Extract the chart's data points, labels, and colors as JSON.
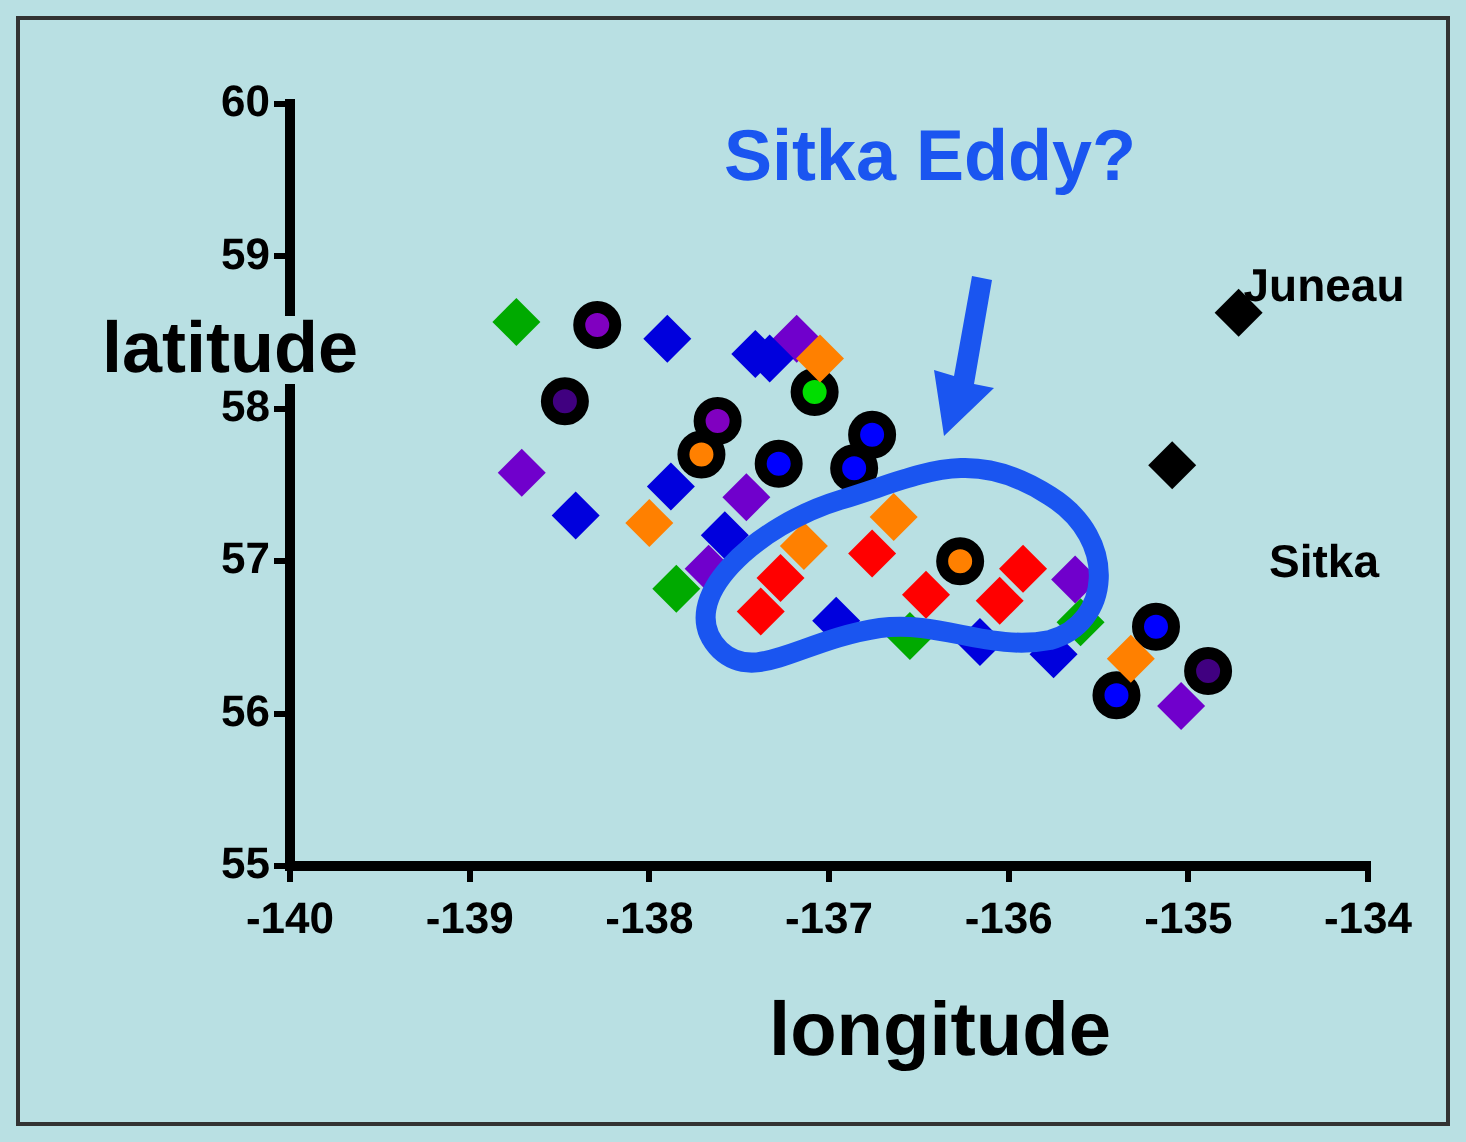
{
  "chart_data": {
    "type": "scatter",
    "xlabel": "longitude",
    "ylabel": "latitude",
    "xlim": [
      -140,
      -134
    ],
    "ylim": [
      55,
      60
    ],
    "xticks": [
      -140,
      -139,
      -138,
      -137,
      -136,
      -135,
      -134
    ],
    "yticks": [
      55,
      56,
      57,
      58,
      59,
      60
    ],
    "grid": false,
    "legend": false,
    "annotations": [
      "Sitka Eddy?",
      "Juneau",
      "Sitka"
    ],
    "series": [
      {
        "marker": "circle",
        "color": "#8000c0",
        "x": [
          -138.29,
          -137.62
        ],
        "values": [
          58.55,
          57.92
        ]
      },
      {
        "marker": "circle",
        "color": "#400080",
        "x": [
          -138.47,
          -134.89
        ],
        "values": [
          58.05,
          56.28
        ]
      },
      {
        "marker": "circle",
        "color": "#ff8000",
        "x": [
          -137.71,
          -136.27
        ],
        "values": [
          57.7,
          57.0
        ]
      },
      {
        "marker": "circle",
        "color": "#0000ff",
        "x": [
          -137.28,
          -136.76,
          -136.86,
          -135.18,
          -135.4
        ],
        "values": [
          57.64,
          57.83,
          57.61,
          56.57,
          56.12
        ]
      },
      {
        "marker": "circle",
        "color": "#00dd00",
        "x": [
          -137.08
        ],
        "values": [
          58.11
        ]
      },
      {
        "marker": "diamond",
        "color": "#00aa00",
        "x": [
          -138.74,
          -137.85,
          -136.55,
          -135.6
        ],
        "values": [
          58.57,
          56.82,
          56.51,
          56.6
        ]
      },
      {
        "marker": "diamond",
        "color": "#7000cc",
        "x": [
          -137.18,
          -138.71,
          -137.46,
          -137.67,
          -135.04,
          -135.63
        ],
        "values": [
          58.46,
          57.58,
          57.42,
          56.95,
          56.05,
          56.88
        ]
      },
      {
        "marker": "diamond",
        "color": "#0000dd",
        "x": [
          -137.9,
          -137.41,
          -137.33,
          -138.41,
          -137.88,
          -137.58,
          -136.96,
          -136.16,
          -135.75
        ],
        "values": [
          58.46,
          58.36,
          58.33,
          57.3,
          57.49,
          57.17,
          56.61,
          56.47,
          56.39
        ]
      },
      {
        "marker": "diamond",
        "color": "#ff8000",
        "x": [
          -137.05,
          -138.0,
          -137.14,
          -136.64,
          -135.32
        ],
        "values": [
          58.33,
          57.25,
          57.1,
          57.29,
          56.36
        ]
      },
      {
        "marker": "diamond",
        "color": "#ff0000",
        "x": [
          -137.27,
          -137.38,
          -136.76,
          -136.46,
          -136.05,
          -135.92
        ],
        "values": [
          56.89,
          56.67,
          57.05,
          56.78,
          56.74,
          56.95
        ]
      },
      {
        "marker": "diamond",
        "color": "#000000",
        "x": [
          -134.72,
          -135.09
        ],
        "values": [
          58.63,
          57.63
        ]
      }
    ]
  }
}
